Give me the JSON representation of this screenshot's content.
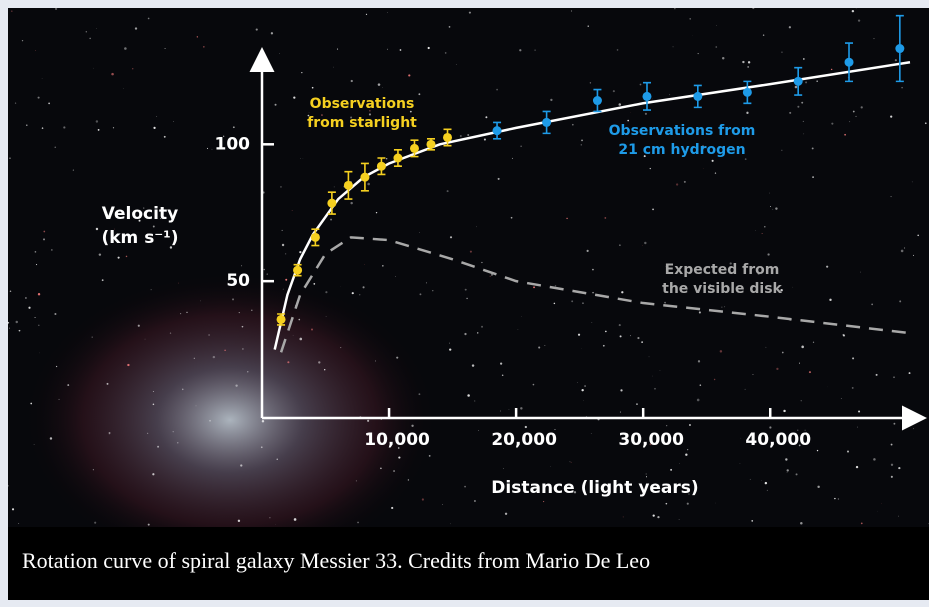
{
  "chart_data": {
    "type": "scatter",
    "x_label": "Distance (light years)",
    "y_label_lines": [
      "Velocity",
      "(km s⁻¹)"
    ],
    "xlim": [
      0,
      51000
    ],
    "xticks": [
      {
        "value": 10000,
        "label": "10,000"
      },
      {
        "value": 20000,
        "label": "20,000"
      },
      {
        "value": 30000,
        "label": "30,000"
      },
      {
        "value": 40000,
        "label": "40,000"
      }
    ],
    "ylim": [
      0,
      133
    ],
    "yticks": [
      50,
      100
    ],
    "series": [
      {
        "kind": "points",
        "label_lines": [
          "Observations",
          "from starlight"
        ],
        "color": "#f5d020",
        "x": [
          1500,
          2800,
          4200,
          5500,
          6800,
          8100,
          9400,
          10700,
          12000,
          13300,
          14600
        ],
        "values": [
          36,
          54,
          66,
          78.5,
          85,
          88,
          92,
          95,
          98.5,
          100,
          102.5
        ],
        "errors": [
          2,
          2,
          3,
          4,
          5,
          5,
          3,
          3,
          3,
          2,
          3
        ]
      },
      {
        "kind": "points",
        "label_lines": [
          "Observations from",
          "21 cm hydrogen"
        ],
        "color": "#1e9be8",
        "x": [
          18500,
          22400,
          26400,
          30300,
          34300,
          38200,
          42200,
          46200,
          50200
        ],
        "values": [
          105,
          108,
          116,
          117.5,
          117.5,
          119,
          123,
          130,
          135
        ],
        "errors": [
          3,
          4,
          4,
          5,
          4,
          4,
          5,
          7,
          12
        ]
      },
      {
        "kind": "line",
        "color": "#ffffff",
        "x": [
          1000,
          2000,
          3000,
          4000,
          6000,
          8000,
          10000,
          14000,
          20000,
          30000,
          40000,
          51000
        ],
        "values": [
          25,
          45,
          58,
          67,
          80,
          88,
          93,
          100,
          106,
          115,
          122,
          130
        ]
      },
      {
        "kind": "dashed",
        "label_lines": [
          "Expected from",
          "the visible disk"
        ],
        "color": "#a8a8a8",
        "x": [
          1500,
          3000,
          5000,
          7000,
          10000,
          15000,
          20000,
          30000,
          40000,
          51000
        ],
        "values": [
          24,
          45,
          60,
          66,
          65,
          58,
          50,
          42,
          37,
          31
        ]
      }
    ]
  },
  "caption": "Rotation curve of spiral galaxy Messier 33. Credits from Mario De Leo"
}
